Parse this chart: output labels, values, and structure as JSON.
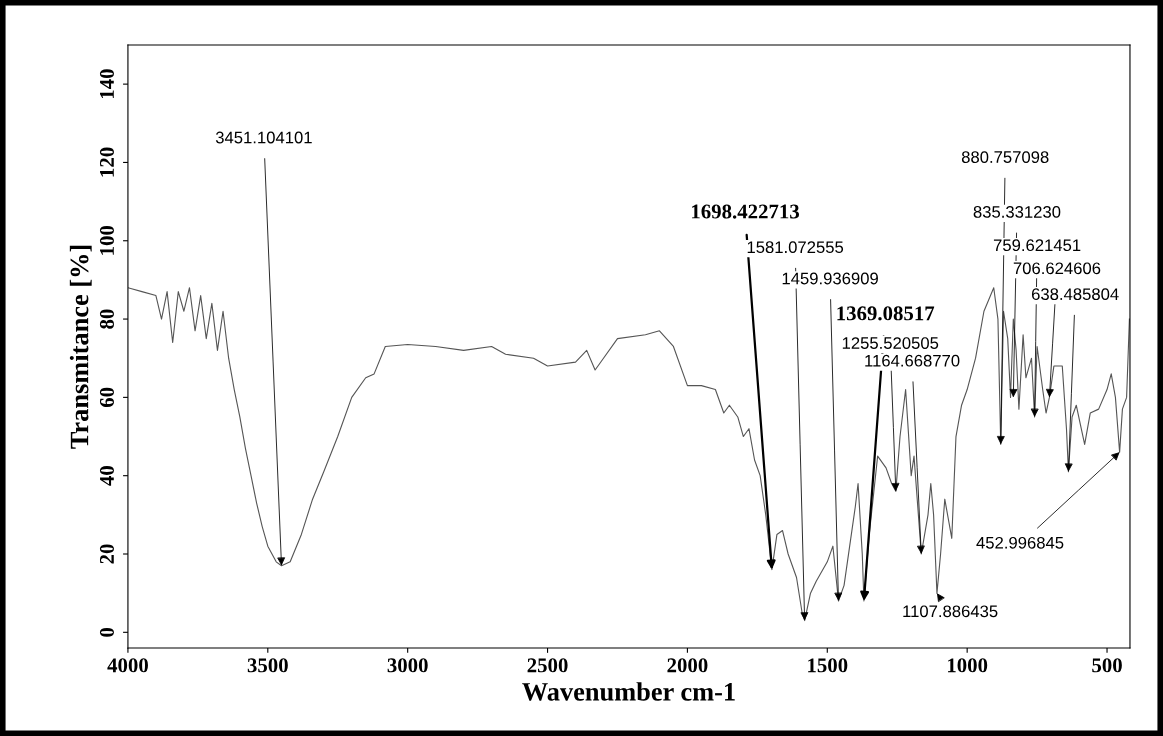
{
  "chart_data": {
    "type": "line",
    "xlabel": "Wavenumber cm-1",
    "ylabel": "Transmitance [%]",
    "xlim": [
      4000,
      418
    ],
    "ylim": [
      -4,
      150
    ],
    "xticks": [
      4000,
      3500,
      3000,
      2500,
      2000,
      1500,
      1000,
      500
    ],
    "yticks": [
      0,
      20,
      40,
      60,
      80,
      100,
      120,
      140
    ],
    "grid": false,
    "legend": false,
    "marker": "none",
    "line_style": "solid",
    "series": [
      {
        "color": "#555555",
        "x": [
          4000,
          3950,
          3900,
          3880,
          3860,
          3840,
          3820,
          3800,
          3780,
          3760,
          3740,
          3720,
          3700,
          3680,
          3660,
          3640,
          3620,
          3600,
          3580,
          3560,
          3540,
          3520,
          3500,
          3470,
          3451,
          3420,
          3380,
          3340,
          3300,
          3250,
          3200,
          3150,
          3120,
          3080,
          3000,
          2900,
          2800,
          2700,
          2650,
          2550,
          2500,
          2400,
          2360,
          2330,
          2300,
          2250,
          2150,
          2100,
          2050,
          2000,
          1950,
          1900,
          1870,
          1850,
          1820,
          1800,
          1780,
          1760,
          1740,
          1720,
          1698,
          1680,
          1660,
          1640,
          1610,
          1590,
          1581,
          1560,
          1540,
          1500,
          1480,
          1460,
          1440,
          1420,
          1400,
          1390,
          1375,
          1369,
          1350,
          1320,
          1290,
          1270,
          1255,
          1240,
          1220,
          1200,
          1190,
          1164,
          1140,
          1130,
          1120,
          1108,
          1095,
          1080,
          1065,
          1055,
          1040,
          1020,
          1000,
          970,
          940,
          905,
          890,
          880,
          870,
          855,
          845,
          835,
          825,
          815,
          800,
          790,
          770,
          759,
          750,
          730,
          718,
          706,
          690,
          660,
          645,
          638,
          625,
          610,
          595,
          580,
          560,
          530,
          500,
          485,
          470,
          455,
          445,
          430,
          420
        ],
        "values": [
          88,
          87,
          86,
          80,
          87,
          74,
          87,
          82,
          88,
          77,
          86,
          75,
          84,
          72,
          82,
          70,
          62,
          55,
          47,
          40,
          33,
          27,
          22,
          18,
          17,
          18,
          25,
          34,
          41,
          50,
          60,
          65,
          66,
          73,
          73.5,
          73,
          72,
          73,
          71,
          70,
          68,
          69,
          72,
          67,
          70,
          75,
          76,
          77,
          73,
          63,
          63,
          62,
          56,
          58,
          55,
          50,
          52,
          44,
          40,
          30,
          16,
          25,
          26,
          20,
          14,
          5,
          3,
          10,
          13,
          18,
          22,
          8,
          12,
          22,
          32,
          38,
          20,
          8,
          25,
          45,
          42,
          38,
          36,
          50,
          62,
          40,
          45,
          20,
          30,
          38,
          30,
          10,
          20,
          34,
          28,
          24,
          50,
          58,
          62,
          70,
          82,
          88,
          80,
          48,
          82,
          75,
          60,
          80,
          72,
          57,
          76,
          65,
          70,
          55,
          73,
          62,
          56,
          60,
          68,
          68,
          52,
          41,
          55,
          58,
          53,
          48,
          56,
          57,
          62,
          66,
          60,
          46,
          57,
          60,
          80
        ]
      }
    ],
    "annotations": [
      {
        "text": "3451.104101",
        "x": 3451,
        "y": 17
      },
      {
        "text": "1698.422713",
        "x": 1698,
        "y": 16
      },
      {
        "text": "1581.072555",
        "x": 1581,
        "y": 3
      },
      {
        "text": "1459.936909",
        "x": 1460,
        "y": 8
      },
      {
        "text": "1369.08517",
        "x": 1369,
        "y": 8
      },
      {
        "text": "1255.520505",
        "x": 1255,
        "y": 36
      },
      {
        "text": "1164.668770",
        "x": 1164,
        "y": 20
      },
      {
        "text": "1107.886435",
        "x": 1108,
        "y": 10
      },
      {
        "text": "880.757098",
        "x": 880,
        "y": 48
      },
      {
        "text": "835.331230",
        "x": 835,
        "y": 60
      },
      {
        "text": "759.621451",
        "x": 759,
        "y": 55
      },
      {
        "text": "706.624606",
        "x": 706,
        "y": 60
      },
      {
        "text": "638.485804",
        "x": 638,
        "y": 41
      },
      {
        "text": "452.996845",
        "x": 455,
        "y": 46
      }
    ]
  }
}
